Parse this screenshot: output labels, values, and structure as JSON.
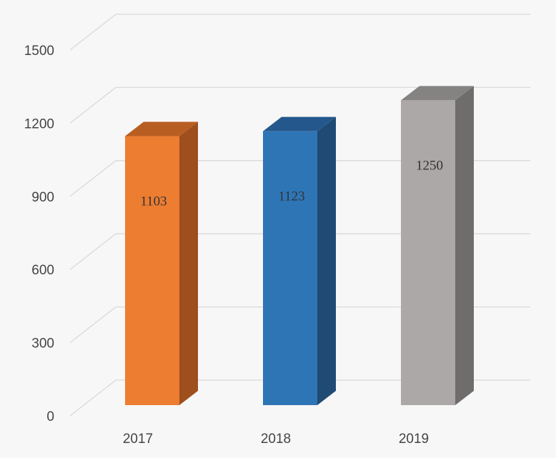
{
  "chart_data": {
    "type": "bar",
    "style": "3d-column",
    "categories": [
      "2017",
      "2018",
      "2019"
    ],
    "values": [
      1103,
      1123,
      1250
    ],
    "data_labels": [
      "1103",
      "1123",
      "1250"
    ],
    "ylim": [
      0,
      1500
    ],
    "yticks": [
      "0",
      "300",
      "600",
      "900",
      "1200",
      "1500"
    ],
    "ytick_values": [
      0,
      300,
      600,
      900,
      1200,
      1500
    ],
    "grid": true,
    "legend": "none",
    "title": "",
    "xlabel": "",
    "ylabel": "",
    "colors": {
      "front": [
        "#ED7D31",
        "#2E75B6",
        "#ABA8A7"
      ],
      "top": [
        "#B95E22",
        "#24588C",
        "#858282"
      ],
      "side": [
        "#9E4F1D",
        "#1F4A74",
        "#6F6D6C"
      ],
      "grid": "#d9d9d9",
      "background": "#f7f7f7"
    }
  }
}
